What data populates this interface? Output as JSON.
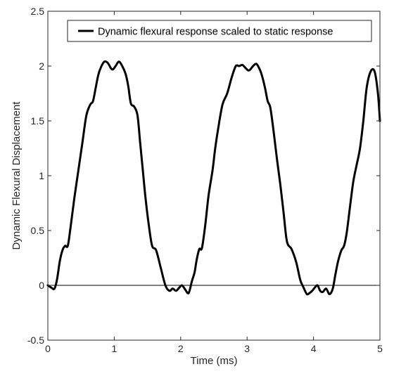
{
  "chart_data": {
    "type": "line",
    "xlabel": "Time (ms)",
    "ylabel": "Dynamic Flexural Displacement",
    "xlim": [
      0,
      5
    ],
    "ylim": [
      -0.5,
      2.5
    ],
    "xticks": [
      0,
      1,
      2,
      3,
      4,
      5
    ],
    "yticks": [
      -0.5,
      0,
      0.5,
      1,
      1.5,
      2,
      2.5
    ],
    "xtick_labels": [
      "0",
      "1",
      "2",
      "3",
      "4",
      "5"
    ],
    "ytick_labels": [
      "-0.5",
      "0",
      "0.5",
      "1",
      "1.5",
      "2",
      "2.5"
    ],
    "grid": false,
    "legend_position": "top-right",
    "reference_line_y": 0,
    "series": [
      {
        "name": "Dynamic flexural response scaled to static response",
        "color": "#000000",
        "x": [
          0.0,
          0.05,
          0.1,
          0.14,
          0.18,
          0.22,
          0.26,
          0.3,
          0.34,
          0.4,
          0.46,
          0.52,
          0.58,
          0.64,
          0.68,
          0.72,
          0.76,
          0.8,
          0.85,
          0.9,
          0.95,
          0.98,
          1.02,
          1.07,
          1.12,
          1.17,
          1.21,
          1.25,
          1.3,
          1.35,
          1.39,
          1.43,
          1.47,
          1.52,
          1.57,
          1.63,
          1.7,
          1.77,
          1.83,
          1.88,
          1.93,
          1.98,
          2.02,
          2.07,
          2.12,
          2.17,
          2.21,
          2.24,
          2.28,
          2.32,
          2.37,
          2.42,
          2.48,
          2.52,
          2.57,
          2.63,
          2.7,
          2.77,
          2.83,
          2.88,
          2.93,
          2.98,
          3.02,
          3.05,
          3.09,
          3.14,
          3.19,
          3.23,
          3.27,
          3.31,
          3.35,
          3.4,
          3.45,
          3.5,
          3.55,
          3.6,
          3.67,
          3.74,
          3.8,
          3.85,
          3.9,
          3.94,
          3.98,
          4.02,
          4.06,
          4.1,
          4.14,
          4.19,
          4.24,
          4.29,
          4.33,
          4.37,
          4.42,
          4.46,
          4.5,
          4.55,
          4.6,
          4.65,
          4.7,
          4.75,
          4.8,
          4.86,
          4.92,
          4.97,
          5.0
        ],
        "y": [
          0.0,
          -0.02,
          -0.03,
          0.06,
          0.22,
          0.32,
          0.36,
          0.36,
          0.52,
          0.8,
          1.05,
          1.3,
          1.55,
          1.65,
          1.68,
          1.8,
          1.92,
          1.99,
          2.04,
          2.03,
          1.98,
          1.97,
          2.0,
          2.04,
          2.0,
          1.93,
          1.82,
          1.66,
          1.63,
          1.55,
          1.3,
          1.05,
          0.8,
          0.55,
          0.36,
          0.32,
          0.16,
          0.0,
          -0.05,
          -0.03,
          -0.05,
          -0.02,
          0.0,
          -0.04,
          -0.07,
          0.04,
          0.12,
          0.23,
          0.33,
          0.34,
          0.55,
          0.82,
          1.05,
          1.25,
          1.45,
          1.65,
          1.75,
          1.9,
          2.0,
          2.0,
          2.01,
          1.98,
          1.96,
          1.97,
          2.0,
          2.02,
          1.97,
          1.9,
          1.8,
          1.68,
          1.62,
          1.4,
          1.15,
          0.92,
          0.66,
          0.4,
          0.33,
          0.21,
          0.05,
          -0.02,
          -0.08,
          -0.07,
          -0.05,
          -0.02,
          0.0,
          -0.05,
          -0.06,
          -0.03,
          -0.08,
          -0.03,
          0.1,
          0.22,
          0.32,
          0.36,
          0.48,
          0.72,
          0.95,
          1.1,
          1.25,
          1.5,
          1.8,
          1.95,
          1.95,
          1.75,
          1.5
        ]
      }
    ]
  }
}
